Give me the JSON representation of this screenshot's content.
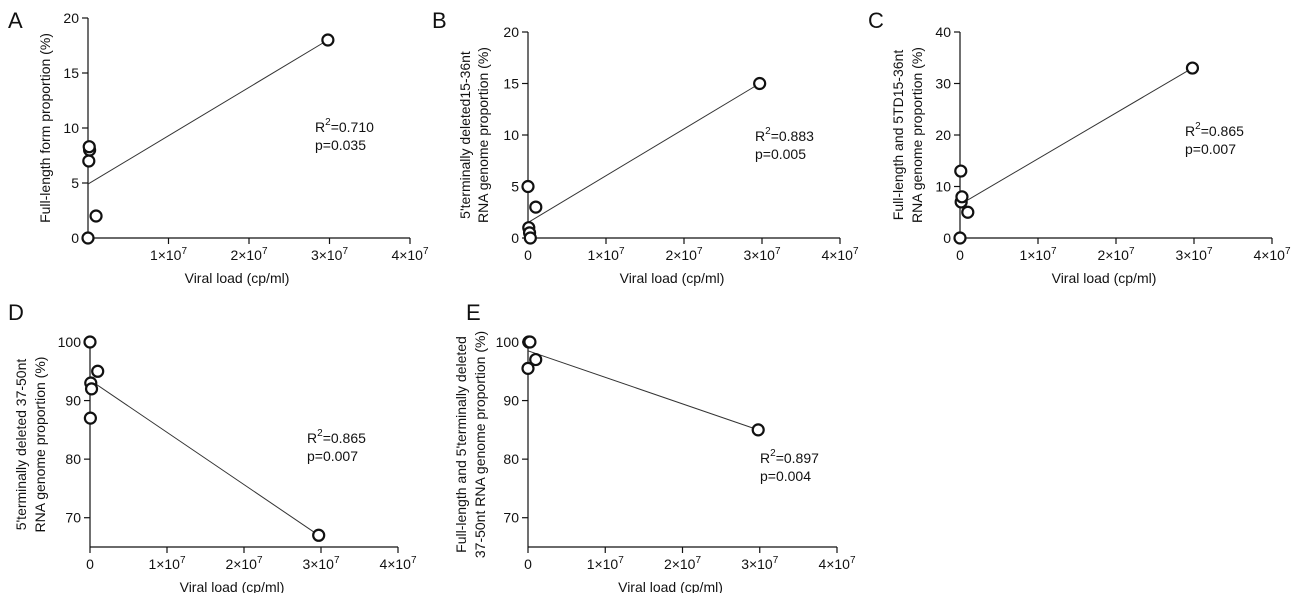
{
  "figure": {
    "xlabel": "Viral load (cp/ml)",
    "x_tick_labels": [
      {
        "base": "1×10",
        "exp": "7"
      },
      {
        "base": "2×10",
        "exp": "7"
      },
      {
        "base": "3×10",
        "exp": "7"
      },
      {
        "base": "4×10",
        "exp": "7"
      }
    ]
  },
  "chart_data": [
    {
      "panel": "A",
      "type": "scatter",
      "title": "",
      "xlabel": "Viral load (cp/ml)",
      "ylabel": [
        "Full-length form proportion (%)"
      ],
      "xlim": [
        0,
        40000000
      ],
      "ylim": [
        0,
        20
      ],
      "yticks": [
        0,
        5,
        10,
        15,
        20
      ],
      "xticks": [
        10000000,
        20000000,
        30000000,
        40000000
      ],
      "x_zero_tick": false,
      "points": [
        {
          "x": 0,
          "y": 0
        },
        {
          "x": 1000000,
          "y": 2
        },
        {
          "x": 100000,
          "y": 7
        },
        {
          "x": 200000,
          "y": 8
        },
        {
          "x": 150000,
          "y": 8.3
        },
        {
          "x": 29800000,
          "y": 18
        }
      ],
      "fit": {
        "x": [
          0,
          29800000
        ],
        "y": [
          4.9,
          18
        ]
      },
      "r2_label": "R",
      "r2_sup": "2",
      "r2_value": "=0.710",
      "p_text": "p=0.035"
    },
    {
      "panel": "B",
      "type": "scatter",
      "title": "",
      "xlabel": "Viral load (cp/ml)",
      "ylabel": [
        "5'terminally deleted15-36nt",
        "RNA genome proportion (%)"
      ],
      "xlim": [
        0,
        40000000
      ],
      "ylim": [
        0,
        20
      ],
      "yticks": [
        0,
        5,
        10,
        15,
        20
      ],
      "xticks": [
        0,
        10000000,
        20000000,
        30000000,
        40000000
      ],
      "x_zero_tick": true,
      "points": [
        {
          "x": 0,
          "y": 5
        },
        {
          "x": 100000,
          "y": 1
        },
        {
          "x": 200000,
          "y": 0.5
        },
        {
          "x": 300000,
          "y": 0
        },
        {
          "x": 1000000,
          "y": 3
        },
        {
          "x": 29700000,
          "y": 15
        }
      ],
      "fit": {
        "x": [
          0,
          29700000
        ],
        "y": [
          1.5,
          15
        ]
      },
      "r2_label": "R",
      "r2_sup": "2",
      "r2_value": "=0.883",
      "p_text": "p=0.005"
    },
    {
      "panel": "C",
      "type": "scatter",
      "title": "",
      "xlabel": "Viral load (cp/ml)",
      "ylabel": [
        "Full-length and 5TD15-36nt",
        "RNA genome proportion (%)"
      ],
      "xlim": [
        0,
        40000000
      ],
      "ylim": [
        0,
        40
      ],
      "yticks": [
        0,
        10,
        20,
        30,
        40
      ],
      "xticks": [
        0,
        10000000,
        20000000,
        30000000,
        40000000
      ],
      "x_zero_tick": true,
      "points": [
        {
          "x": 0,
          "y": 0
        },
        {
          "x": 100000,
          "y": 13
        },
        {
          "x": 150000,
          "y": 7
        },
        {
          "x": 250000,
          "y": 8
        },
        {
          "x": 1000000,
          "y": 5
        },
        {
          "x": 29800000,
          "y": 33
        }
      ],
      "fit": {
        "x": [
          0,
          29800000
        ],
        "y": [
          6.5,
          33
        ]
      },
      "r2_label": "R",
      "r2_sup": "2",
      "r2_value": "=0.865",
      "p_text": "p=0.007"
    },
    {
      "panel": "D",
      "type": "scatter",
      "title": "",
      "xlabel": "Viral load (cp/ml)",
      "ylabel": [
        "5'terminally deleted 37-50nt",
        "RNA genome proportion (%)"
      ],
      "xlim": [
        0,
        40000000
      ],
      "ylim": [
        65,
        100
      ],
      "yticks": [
        70,
        80,
        90,
        100
      ],
      "xticks": [
        0,
        10000000,
        20000000,
        30000000,
        40000000
      ],
      "x_zero_tick": true,
      "points": [
        {
          "x": 0,
          "y": 100
        },
        {
          "x": 100000,
          "y": 93
        },
        {
          "x": 200000,
          "y": 92
        },
        {
          "x": 50000,
          "y": 87
        },
        {
          "x": 1000000,
          "y": 95
        },
        {
          "x": 29700000,
          "y": 67
        }
      ],
      "fit": {
        "x": [
          0,
          29700000
        ],
        "y": [
          93.5,
          67
        ]
      },
      "r2_label": "R",
      "r2_sup": "2",
      "r2_value": "=0.865",
      "p_text": "p=0.007"
    },
    {
      "panel": "E",
      "type": "scatter",
      "title": "",
      "xlabel": "Viral load (cp/ml)",
      "ylabel": [
        "Full-length and 5'terminally deleted",
        "37-50nt RNA genome proportion (%)"
      ],
      "xlim": [
        0,
        40000000
      ],
      "ylim": [
        65,
        100
      ],
      "yticks": [
        70,
        80,
        90,
        100
      ],
      "xticks": [
        0,
        10000000,
        20000000,
        30000000,
        40000000
      ],
      "x_zero_tick": true,
      "points": [
        {
          "x": 0,
          "y": 95.5
        },
        {
          "x": 100000,
          "y": 100
        },
        {
          "x": 250000,
          "y": 100
        },
        {
          "x": 1000000,
          "y": 97
        },
        {
          "x": 29800000,
          "y": 85
        }
      ],
      "fit": {
        "x": [
          0,
          29800000
        ],
        "y": [
          98.5,
          85
        ]
      },
      "r2_label": "R",
      "r2_sup": "2",
      "r2_value": "=0.897",
      "p_text": "p=0.004"
    }
  ]
}
